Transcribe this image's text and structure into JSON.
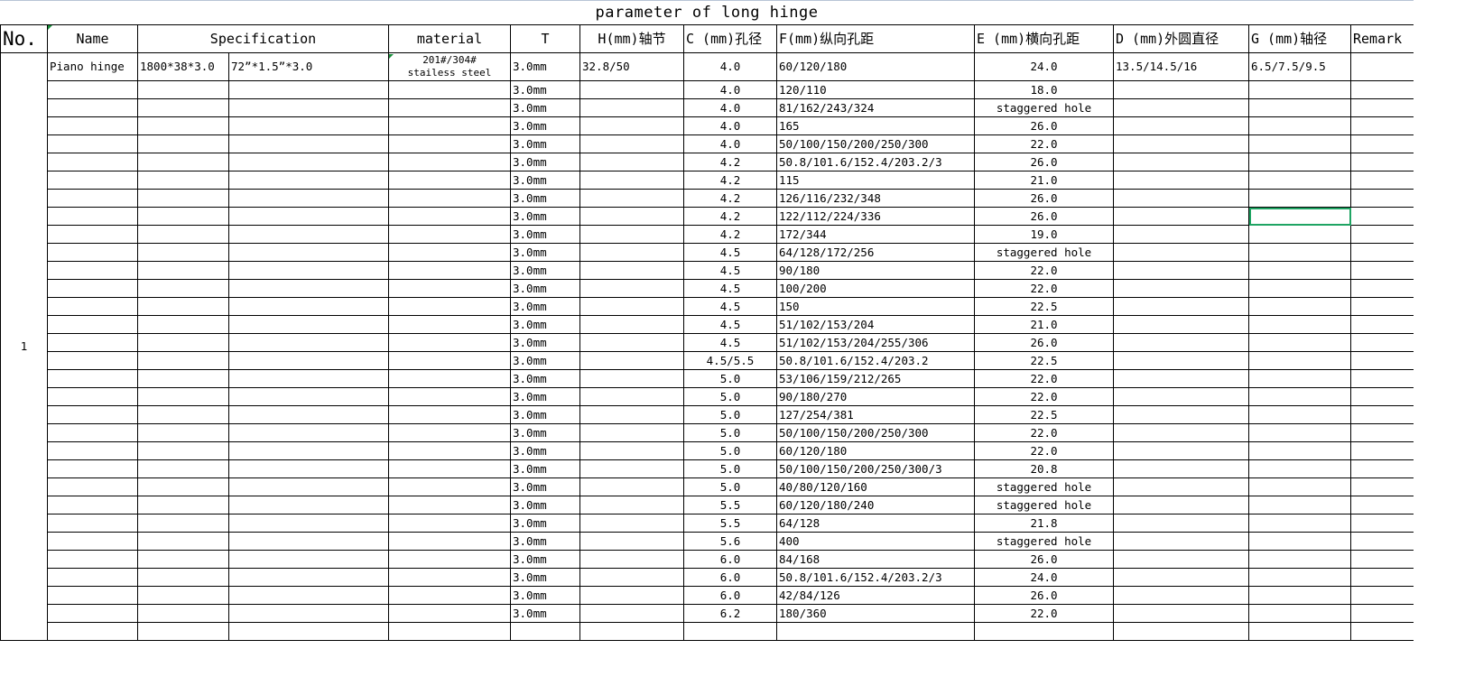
{
  "title": "parameter of long  hinge",
  "headers": {
    "no": "No.",
    "name": "Name",
    "spec": "Specification",
    "material": "material",
    "t": "T",
    "h": "H(mm)轴节",
    "c": "C (mm)孔径",
    "f": "F(mm)纵向孔距",
    "e": "E (mm)横向孔距",
    "d": "D (mm)外圆直径",
    "g": "G (mm)轴径",
    "remark": "Remark"
  },
  "first_row": {
    "no": "1",
    "name": "Piano hinge",
    "spec1": "1800*38*3.0",
    "spec2": "72”*1.5”*3.0",
    "material_line1": "201#/304#",
    "material_line2": "stailess steel",
    "t": "3.0mm",
    "h": "32.8/50",
    "c": "4.0",
    "f": "60/120/180",
    "e": "24.0",
    "d": "13.5/14.5/16",
    "g": "6.5/7.5/9.5",
    "remark": ""
  },
  "rows": [
    {
      "t": "3.0mm",
      "c": "4.0",
      "f": "120/110",
      "e": "18.0"
    },
    {
      "t": "3.0mm",
      "c": "4.0",
      "f": "81/162/243/324",
      "e": "staggered hole"
    },
    {
      "t": "3.0mm",
      "c": "4.0",
      "f": "165",
      "e": "26.0"
    },
    {
      "t": "3.0mm",
      "c": "4.0",
      "f": "50/100/150/200/250/300",
      "e": "22.0"
    },
    {
      "t": "3.0mm",
      "c": "4.2",
      "f": "50.8/101.6/152.4/203.2/3",
      "e": "26.0"
    },
    {
      "t": "3.0mm",
      "c": "4.2",
      "f": "115",
      "e": "21.0"
    },
    {
      "t": "3.0mm",
      "c": "4.2",
      "f": "126/116/232/348",
      "e": "26.0"
    },
    {
      "t": "3.0mm",
      "c": "4.2",
      "f": "122/112/224/336",
      "e": "26.0"
    },
    {
      "t": "3.0mm",
      "c": "4.2",
      "f": "172/344",
      "e": "19.0"
    },
    {
      "t": "3.0mm",
      "c": "4.5",
      "f": "64/128/172/256",
      "e": "staggered hole"
    },
    {
      "t": "3.0mm",
      "c": "4.5",
      "f": "90/180",
      "e": "22.0"
    },
    {
      "t": "3.0mm",
      "c": "4.5",
      "f": "100/200",
      "e": "22.0"
    },
    {
      "t": "3.0mm",
      "c": "4.5",
      "f": "150",
      "e": "22.5"
    },
    {
      "t": "3.0mm",
      "c": "4.5",
      "f": "51/102/153/204",
      "e": "21.0"
    },
    {
      "t": "3.0mm",
      "c": "4.5",
      "f": "51/102/153/204/255/306",
      "e": "26.0"
    },
    {
      "t": "3.0mm",
      "c": "4.5/5.5",
      "f": "50.8/101.6/152.4/203.2",
      "e": "22.5"
    },
    {
      "t": "3.0mm",
      "c": "5.0",
      "f": "53/106/159/212/265",
      "e": "22.0"
    },
    {
      "t": "3.0mm",
      "c": "5.0",
      "f": "90/180/270",
      "e": "22.0"
    },
    {
      "t": "3.0mm",
      "c": "5.0",
      "f": "127/254/381",
      "e": "22.5"
    },
    {
      "t": "3.0mm",
      "c": "5.0",
      "f": "50/100/150/200/250/300",
      "e": "22.0"
    },
    {
      "t": "3.0mm",
      "c": "5.0",
      "f": "60/120/180",
      "e": "22.0"
    },
    {
      "t": "3.0mm",
      "c": "5.0",
      "f": "50/100/150/200/250/300/3",
      "e": "20.8"
    },
    {
      "t": "3.0mm",
      "c": "5.0",
      "f": "40/80/120/160",
      "e": "staggered hole"
    },
    {
      "t": "3.0mm",
      "c": "5.5",
      "f": "60/120/180/240",
      "e": "staggered hole"
    },
    {
      "t": "3.0mm",
      "c": "5.5",
      "f": "64/128",
      "e": "21.8"
    },
    {
      "t": "3.0mm",
      "c": "5.6",
      "f": "400",
      "e": "staggered hole"
    },
    {
      "t": "3.0mm",
      "c": "6.0",
      "f": "84/168",
      "e": "26.0"
    },
    {
      "t": "3.0mm",
      "c": "6.0",
      "f": "50.8/101.6/152.4/203.2/3",
      "e": "24.0"
    },
    {
      "t": "3.0mm",
      "c": "6.0",
      "f": "42/84/126",
      "e": "26.0"
    },
    {
      "t": "3.0mm",
      "c": "6.2",
      "f": "180/360",
      "e": "22.0"
    }
  ],
  "selection_color": "#1fa463"
}
